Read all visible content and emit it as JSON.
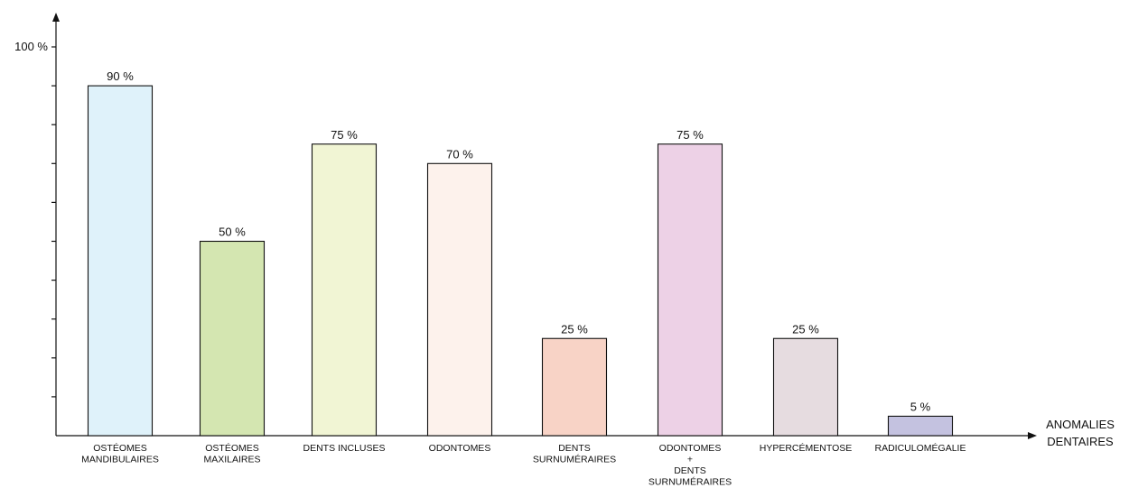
{
  "chart_data": {
    "type": "bar",
    "title": "",
    "ylabel": "",
    "xlabel": [
      "ANOMALIES",
      "DENTAIRES"
    ],
    "ylim": [
      0,
      100
    ],
    "y_top_tick_label": "100 %",
    "y_minor_tick_step": 10,
    "categories": [
      [
        "OSTÉOMES",
        "MANDIBULAIRES"
      ],
      [
        "OSTÉOMES",
        "MAXILAIRES"
      ],
      [
        "DENTS INCLUSES"
      ],
      [
        "ODONTOMES"
      ],
      [
        "DENTS",
        "SURNUMÉRAIRES"
      ],
      [
        "ODONTOMES",
        "+",
        "DENTS",
        "SURNUMÉRAIRES"
      ],
      [
        "HYPERCÉMENTOSE"
      ],
      [
        "RADICULOMÉGALIE"
      ]
    ],
    "values": [
      90,
      50,
      75,
      70,
      25,
      75,
      25,
      5
    ],
    "value_labels": [
      "90 %",
      "50 %",
      "75 %",
      "70 %",
      "25 %",
      "75 %",
      "25 %",
      "5 %"
    ],
    "colors": [
      "#dff2fa",
      "#d4e6b1",
      "#f1f5d4",
      "#fdf2ec",
      "#f8d3c6",
      "#edd1e6",
      "#e6dce0",
      "#c4c2e0"
    ],
    "grid": false
  }
}
